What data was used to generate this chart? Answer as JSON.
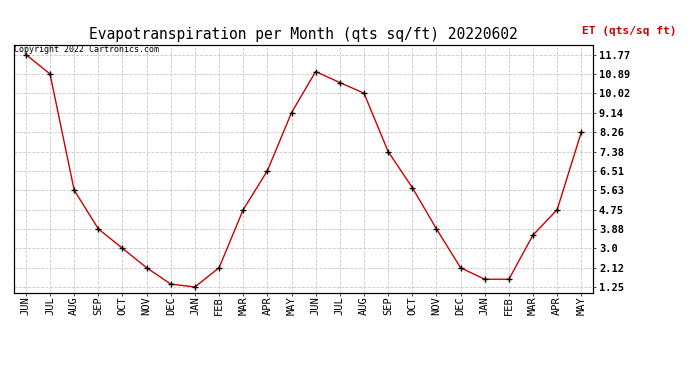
{
  "title": "Evapotranspiration per Month (qts sq/ft) 20220602",
  "ylabel": "ET (qts/sq ft)",
  "copyright": "Copyright 2022 Cartronics.com",
  "months": [
    "JUN",
    "JUL",
    "AUG",
    "SEP",
    "OCT",
    "NOV",
    "DEC",
    "JAN",
    "FEB",
    "MAR",
    "APR",
    "MAY",
    "JUN",
    "JUL",
    "AUG",
    "SEP",
    "OCT",
    "NOV",
    "DEC",
    "JAN",
    "FEB",
    "MAR",
    "APR",
    "MAY"
  ],
  "values": [
    11.77,
    10.89,
    5.63,
    3.88,
    3.0,
    2.12,
    1.38,
    1.25,
    2.12,
    4.75,
    6.51,
    9.14,
    11.0,
    10.5,
    10.02,
    7.38,
    5.75,
    3.88,
    2.12,
    1.6,
    1.6,
    3.6,
    4.75,
    8.26
  ],
  "yticks": [
    1.25,
    2.12,
    3.0,
    3.88,
    4.75,
    5.63,
    6.51,
    7.38,
    8.26,
    9.14,
    10.02,
    10.89,
    11.77
  ],
  "ylim": [
    1.0,
    12.2
  ],
  "line_color": "#cc0000",
  "marker_color": "#000000",
  "grid_color": "#c8c8c8",
  "title_color": "#000000",
  "ylabel_color": "#cc0000",
  "copyright_color": "#000000",
  "background_color": "#ffffff",
  "title_fontsize": 10.5,
  "ylabel_fontsize": 8,
  "tick_fontsize": 7.5,
  "copyright_fontsize": 6
}
